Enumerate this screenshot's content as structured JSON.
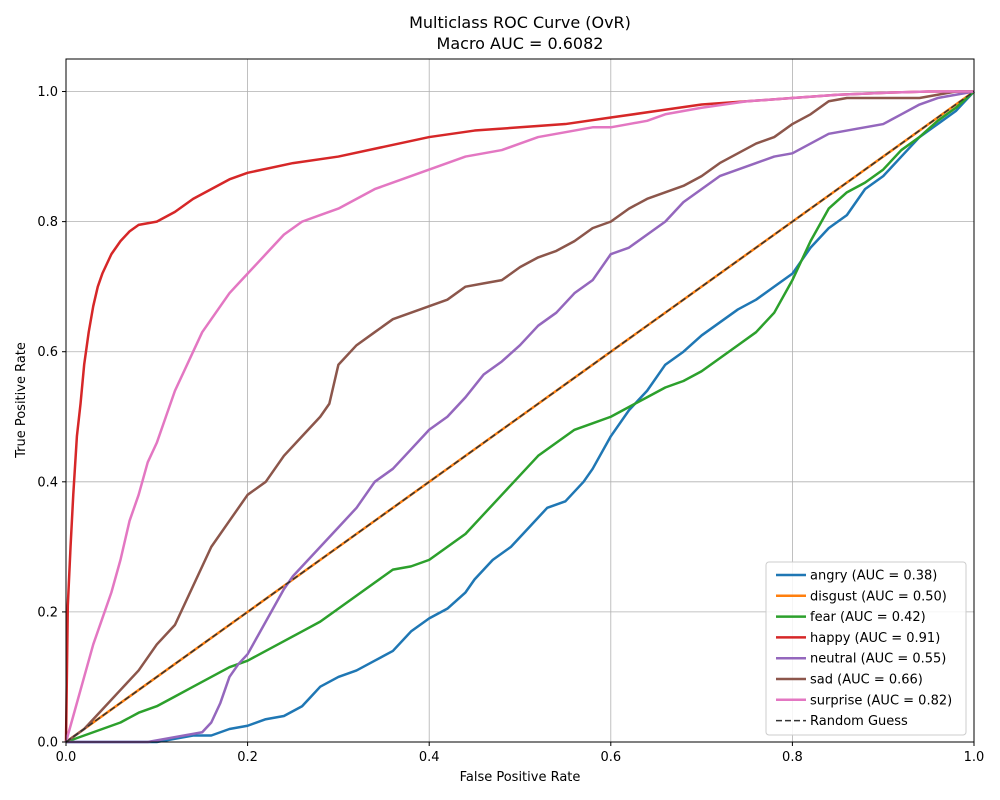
{
  "chart_data": {
    "type": "line",
    "title": "Multiclass ROC Curve (OvR)",
    "subtitle": "Macro AUC = 0.6082",
    "xlabel": "False Positive Rate",
    "ylabel": "True Positive Rate",
    "xlim": [
      0.0,
      1.0
    ],
    "ylim": [
      0.0,
      1.05
    ],
    "xticks": [
      "0.0",
      "0.2",
      "0.4",
      "0.6",
      "0.8",
      "1.0"
    ],
    "yticks": [
      "0.0",
      "0.2",
      "0.4",
      "0.6",
      "0.8",
      "1.0"
    ],
    "grid": true,
    "legend_position": "lower-right",
    "series": [
      {
        "name": "angry (AUC = 0.38)",
        "color": "#1f77b4",
        "dash": false,
        "x": [
          0.0,
          0.05,
          0.1,
          0.12,
          0.14,
          0.16,
          0.17,
          0.18,
          0.2,
          0.22,
          0.24,
          0.26,
          0.27,
          0.28,
          0.3,
          0.32,
          0.34,
          0.36,
          0.38,
          0.4,
          0.42,
          0.44,
          0.45,
          0.47,
          0.49,
          0.51,
          0.53,
          0.55,
          0.57,
          0.58,
          0.6,
          0.62,
          0.64,
          0.66,
          0.68,
          0.7,
          0.72,
          0.74,
          0.76,
          0.78,
          0.8,
          0.82,
          0.84,
          0.86,
          0.88,
          0.9,
          0.92,
          0.94,
          0.96,
          0.98,
          1.0
        ],
        "y": [
          0.0,
          0.0,
          0.0,
          0.005,
          0.01,
          0.01,
          0.015,
          0.02,
          0.025,
          0.035,
          0.04,
          0.055,
          0.07,
          0.085,
          0.1,
          0.11,
          0.125,
          0.14,
          0.17,
          0.19,
          0.205,
          0.23,
          0.25,
          0.28,
          0.3,
          0.33,
          0.36,
          0.37,
          0.4,
          0.42,
          0.47,
          0.51,
          0.54,
          0.58,
          0.6,
          0.625,
          0.645,
          0.665,
          0.68,
          0.7,
          0.72,
          0.76,
          0.79,
          0.81,
          0.85,
          0.87,
          0.9,
          0.93,
          0.95,
          0.97,
          1.0
        ]
      },
      {
        "name": "disgust (AUC = 0.50)",
        "color": "#ff7f0e",
        "dash": false,
        "x": [
          0.0,
          1.0
        ],
        "y": [
          0.0,
          1.0
        ]
      },
      {
        "name": "fear (AUC = 0.42)",
        "color": "#2ca02c",
        "dash": false,
        "x": [
          0.0,
          0.02,
          0.04,
          0.06,
          0.08,
          0.1,
          0.12,
          0.14,
          0.16,
          0.18,
          0.2,
          0.22,
          0.24,
          0.26,
          0.28,
          0.3,
          0.32,
          0.34,
          0.36,
          0.38,
          0.4,
          0.42,
          0.44,
          0.46,
          0.48,
          0.5,
          0.52,
          0.54,
          0.56,
          0.58,
          0.6,
          0.62,
          0.64,
          0.66,
          0.68,
          0.7,
          0.72,
          0.74,
          0.76,
          0.78,
          0.8,
          0.82,
          0.84,
          0.86,
          0.88,
          0.9,
          0.92,
          0.94,
          0.96,
          0.98,
          1.0
        ],
        "y": [
          0.0,
          0.01,
          0.02,
          0.03,
          0.045,
          0.055,
          0.07,
          0.085,
          0.1,
          0.115,
          0.125,
          0.14,
          0.155,
          0.17,
          0.185,
          0.205,
          0.225,
          0.245,
          0.265,
          0.27,
          0.28,
          0.3,
          0.32,
          0.35,
          0.38,
          0.41,
          0.44,
          0.46,
          0.48,
          0.49,
          0.5,
          0.515,
          0.53,
          0.545,
          0.555,
          0.57,
          0.59,
          0.61,
          0.63,
          0.66,
          0.71,
          0.77,
          0.82,
          0.845,
          0.86,
          0.88,
          0.91,
          0.93,
          0.955,
          0.975,
          1.0
        ]
      },
      {
        "name": "happy (AUC = 0.91)",
        "color": "#d62728",
        "dash": false,
        "x": [
          0.0,
          0.002,
          0.005,
          0.008,
          0.012,
          0.016,
          0.02,
          0.025,
          0.03,
          0.035,
          0.04,
          0.05,
          0.06,
          0.07,
          0.08,
          0.1,
          0.12,
          0.14,
          0.16,
          0.18,
          0.2,
          0.25,
          0.3,
          0.35,
          0.4,
          0.45,
          0.5,
          0.55,
          0.6,
          0.65,
          0.7,
          0.75,
          0.8,
          0.85,
          0.9,
          0.95,
          1.0
        ],
        "y": [
          0.0,
          0.21,
          0.3,
          0.38,
          0.47,
          0.52,
          0.58,
          0.63,
          0.67,
          0.7,
          0.72,
          0.75,
          0.77,
          0.785,
          0.795,
          0.8,
          0.815,
          0.835,
          0.85,
          0.865,
          0.875,
          0.89,
          0.9,
          0.915,
          0.93,
          0.94,
          0.945,
          0.95,
          0.96,
          0.97,
          0.98,
          0.985,
          0.99,
          0.995,
          0.998,
          1.0,
          1.0
        ]
      },
      {
        "name": "neutral (AUC = 0.55)",
        "color": "#9467bd",
        "dash": false,
        "x": [
          0.0,
          0.05,
          0.09,
          0.11,
          0.13,
          0.15,
          0.16,
          0.17,
          0.18,
          0.19,
          0.2,
          0.21,
          0.22,
          0.23,
          0.24,
          0.25,
          0.26,
          0.28,
          0.3,
          0.32,
          0.34,
          0.36,
          0.38,
          0.4,
          0.42,
          0.44,
          0.46,
          0.48,
          0.5,
          0.52,
          0.54,
          0.56,
          0.58,
          0.6,
          0.62,
          0.64,
          0.66,
          0.68,
          0.7,
          0.72,
          0.74,
          0.76,
          0.78,
          0.8,
          0.82,
          0.84,
          0.86,
          0.88,
          0.9,
          0.92,
          0.94,
          0.96,
          1.0
        ],
        "y": [
          0.0,
          0.0,
          0.0,
          0.005,
          0.01,
          0.015,
          0.03,
          0.06,
          0.1,
          0.12,
          0.135,
          0.16,
          0.185,
          0.21,
          0.235,
          0.255,
          0.27,
          0.3,
          0.33,
          0.36,
          0.4,
          0.42,
          0.45,
          0.48,
          0.5,
          0.53,
          0.565,
          0.585,
          0.61,
          0.64,
          0.66,
          0.69,
          0.71,
          0.75,
          0.76,
          0.78,
          0.8,
          0.83,
          0.85,
          0.87,
          0.88,
          0.89,
          0.9,
          0.905,
          0.92,
          0.935,
          0.94,
          0.945,
          0.95,
          0.965,
          0.98,
          0.99,
          1.0
        ]
      },
      {
        "name": "sad (AUC = 0.66)",
        "color": "#8c564b",
        "dash": false,
        "x": [
          0.0,
          0.02,
          0.04,
          0.06,
          0.08,
          0.1,
          0.12,
          0.14,
          0.16,
          0.18,
          0.2,
          0.22,
          0.24,
          0.26,
          0.28,
          0.29,
          0.3,
          0.32,
          0.34,
          0.36,
          0.38,
          0.4,
          0.42,
          0.44,
          0.46,
          0.48,
          0.5,
          0.52,
          0.54,
          0.56,
          0.58,
          0.6,
          0.62,
          0.64,
          0.66,
          0.68,
          0.7,
          0.72,
          0.74,
          0.76,
          0.78,
          0.8,
          0.82,
          0.84,
          0.86,
          0.88,
          0.9,
          0.92,
          0.94,
          0.96,
          0.98,
          1.0
        ],
        "y": [
          0.0,
          0.02,
          0.05,
          0.08,
          0.11,
          0.15,
          0.18,
          0.24,
          0.3,
          0.34,
          0.38,
          0.4,
          0.44,
          0.47,
          0.5,
          0.52,
          0.58,
          0.61,
          0.63,
          0.65,
          0.66,
          0.67,
          0.68,
          0.7,
          0.705,
          0.71,
          0.73,
          0.745,
          0.755,
          0.77,
          0.79,
          0.8,
          0.82,
          0.835,
          0.845,
          0.855,
          0.87,
          0.89,
          0.905,
          0.92,
          0.93,
          0.95,
          0.965,
          0.985,
          0.99,
          0.99,
          0.99,
          0.99,
          0.99,
          0.995,
          1.0,
          1.0
        ]
      },
      {
        "name": "surprise (AUC = 0.82)",
        "color": "#e377c2",
        "dash": false,
        "x": [
          0.0,
          0.01,
          0.02,
          0.03,
          0.04,
          0.05,
          0.06,
          0.07,
          0.08,
          0.09,
          0.1,
          0.11,
          0.12,
          0.13,
          0.14,
          0.15,
          0.16,
          0.17,
          0.18,
          0.19,
          0.2,
          0.22,
          0.24,
          0.26,
          0.28,
          0.3,
          0.32,
          0.34,
          0.36,
          0.38,
          0.4,
          0.42,
          0.44,
          0.46,
          0.48,
          0.5,
          0.52,
          0.54,
          0.56,
          0.58,
          0.6,
          0.62,
          0.64,
          0.66,
          0.68,
          0.7,
          0.75,
          0.8,
          0.85,
          0.9,
          0.95,
          1.0
        ],
        "y": [
          0.0,
          0.05,
          0.1,
          0.15,
          0.19,
          0.23,
          0.28,
          0.34,
          0.38,
          0.43,
          0.46,
          0.5,
          0.54,
          0.57,
          0.6,
          0.63,
          0.65,
          0.67,
          0.69,
          0.705,
          0.72,
          0.75,
          0.78,
          0.8,
          0.81,
          0.82,
          0.835,
          0.85,
          0.86,
          0.87,
          0.88,
          0.89,
          0.9,
          0.905,
          0.91,
          0.92,
          0.93,
          0.935,
          0.94,
          0.945,
          0.945,
          0.95,
          0.955,
          0.965,
          0.97,
          0.975,
          0.985,
          0.99,
          0.995,
          0.998,
          1.0,
          1.0
        ]
      },
      {
        "name": "Random Guess",
        "color": "#333333",
        "dash": true,
        "x": [
          0.0,
          1.0
        ],
        "y": [
          0.0,
          1.0
        ]
      }
    ]
  }
}
